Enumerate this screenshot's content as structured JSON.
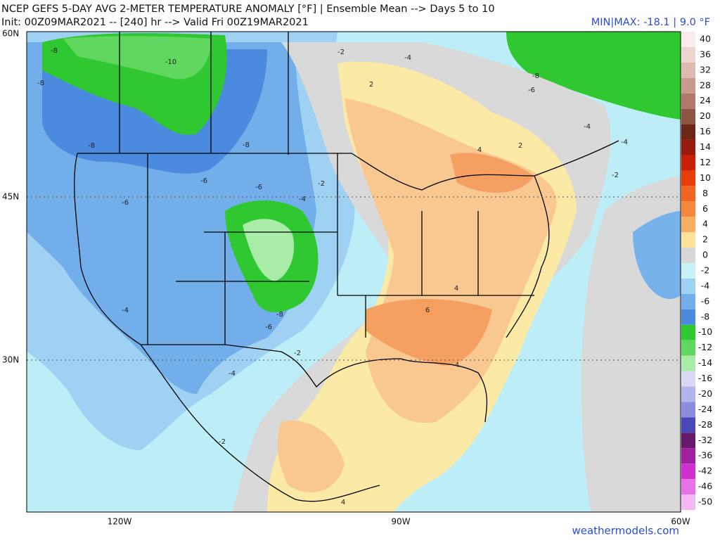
{
  "header": {
    "title": "NCEP GEFS 5-DAY AVG 2-METER TEMPERATURE ANOMALY [°F] | Ensemble Mean --> Days 5 to 10",
    "subtitle": "Init: 00Z09MAR2021 -- [240] hr --> Valid Fri 00Z19MAR2021",
    "minmax": "MIN|MAX: -18.1 | 9.0 °F"
  },
  "axes": {
    "lat": [
      "60N",
      "45N",
      "30N"
    ],
    "lon": [
      "120W",
      "90W",
      "60W"
    ]
  },
  "contour_labels": [
    "-8",
    "-10",
    "-8",
    "-8",
    "-8",
    "-6",
    "-6",
    "-6",
    "-4",
    "-2",
    "-2",
    "-4",
    "2",
    "4",
    "2",
    "-8",
    "-6",
    "-4",
    "-4",
    "-2",
    "-4",
    "-8",
    "-6",
    "-2",
    "-4",
    "4",
    "6",
    "4",
    "-2",
    "4"
  ],
  "colorbar": [
    {
      "label": "40",
      "color": "#f9ecea"
    },
    {
      "label": "36",
      "color": "#ecd4cf"
    },
    {
      "label": "32",
      "color": "#ddbab0"
    },
    {
      "label": "28",
      "color": "#c89a8c"
    },
    {
      "label": "24",
      "color": "#b07a6b"
    },
    {
      "label": "20",
      "color": "#8e5444"
    },
    {
      "label": "16",
      "color": "#6e2416"
    },
    {
      "label": "14",
      "color": "#981a0c"
    },
    {
      "label": "12",
      "color": "#c82008"
    },
    {
      "label": "10",
      "color": "#e83c0a"
    },
    {
      "label": "8",
      "color": "#f26520"
    },
    {
      "label": "6",
      "color": "#f5883c"
    },
    {
      "label": "4",
      "color": "#f8ad60"
    },
    {
      "label": "2",
      "color": "#fbe39c"
    },
    {
      "label": "0",
      "color": "#d8d8d8"
    },
    {
      "label": "-2",
      "color": "#c8f3f8"
    },
    {
      "label": "-4",
      "color": "#9fd2f2"
    },
    {
      "label": "-6",
      "color": "#72aeea"
    },
    {
      "label": "-8",
      "color": "#4a8be0"
    },
    {
      "label": "-10",
      "color": "#30c830"
    },
    {
      "label": "-12",
      "color": "#60d860"
    },
    {
      "label": "-14",
      "color": "#a8eca8"
    },
    {
      "label": "-16",
      "color": "#d8d8f4"
    },
    {
      "label": "-20",
      "color": "#b4b4ec"
    },
    {
      "label": "-24",
      "color": "#8c8ce0"
    },
    {
      "label": "-28",
      "color": "#4848b8"
    },
    {
      "label": "-32",
      "color": "#681868"
    },
    {
      "label": "-36",
      "color": "#a020a0"
    },
    {
      "label": "-42",
      "color": "#d030d0"
    },
    {
      "label": "-46",
      "color": "#e870e8"
    },
    {
      "label": "-50",
      "color": "#f4b8f4"
    }
  ],
  "footer": {
    "credit": "weathermodels.com"
  }
}
